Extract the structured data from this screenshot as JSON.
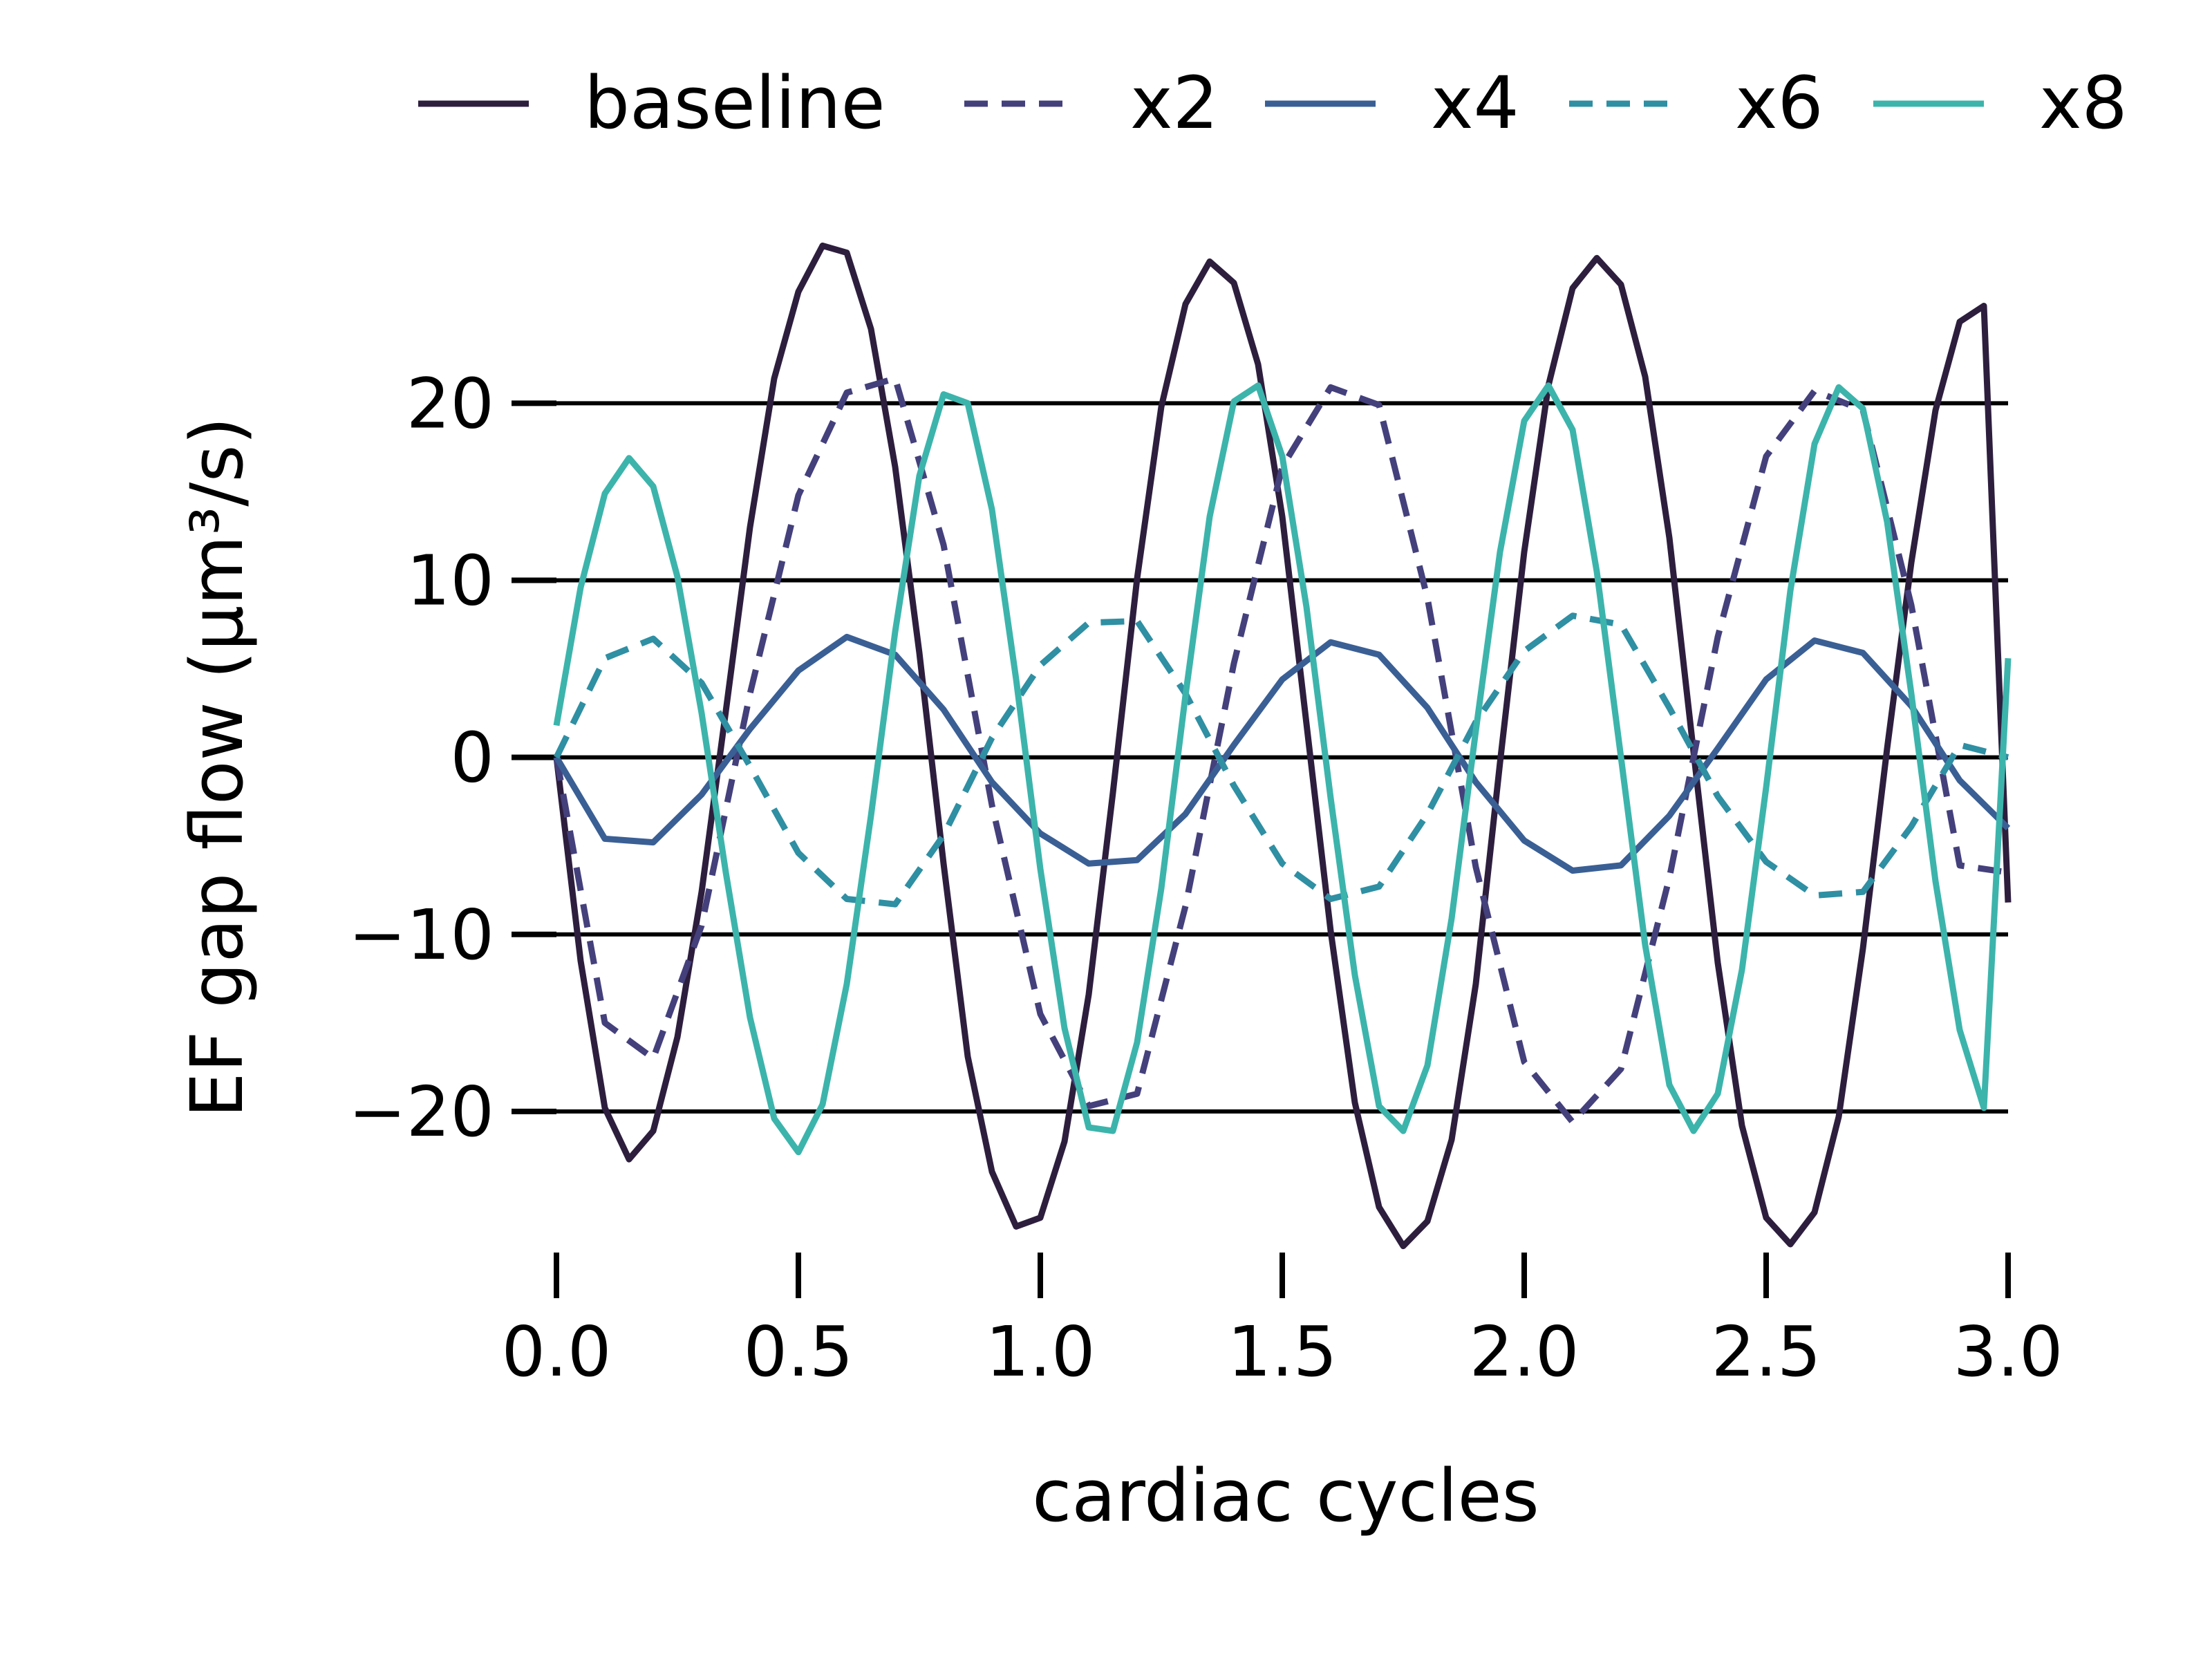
{
  "chart_data": {
    "type": "line",
    "title": "",
    "xlabel": "cardiac cycles",
    "ylabel": "EF gap flow (μm³/s)",
    "xlim": [
      0.0,
      3.0
    ],
    "ylim": [
      -27.5,
      29.5
    ],
    "xticks": [
      0.0,
      0.5,
      1.0,
      1.5,
      2.0,
      2.5,
      3.0
    ],
    "xtick_labels": [
      "0.0",
      "0.5",
      "1.0",
      "1.5",
      "2.0",
      "2.5",
      "3.0"
    ],
    "yticks": [
      -20,
      -10,
      0,
      10,
      20
    ],
    "ytick_labels": [
      "−20",
      "−10",
      "0",
      "10",
      "20"
    ],
    "grid": "horizontal",
    "legend_position": "top",
    "series": [
      {
        "name": "baseline",
        "color": "#2d1e3e",
        "dash": "solid",
        "x": [
          0.0,
          0.05,
          0.1,
          0.15,
          0.2,
          0.25,
          0.3,
          0.35,
          0.4,
          0.45,
          0.5,
          0.55,
          0.6,
          0.65,
          0.7,
          0.75,
          0.8,
          0.85,
          0.9,
          0.95,
          1.0,
          1.05,
          1.1,
          1.15,
          1.2,
          1.25,
          1.3,
          1.35,
          1.4,
          1.45,
          1.5,
          1.55,
          1.6,
          1.65,
          1.7,
          1.75,
          1.8,
          1.85,
          1.9,
          1.95,
          2.0,
          2.05,
          2.1,
          2.15,
          2.2,
          2.25,
          2.3,
          2.35,
          2.4,
          2.45,
          2.5,
          2.55,
          2.6,
          2.65,
          2.7,
          2.75,
          2.8,
          2.85,
          2.9,
          2.95,
          3.0
        ],
        "y": [
          0.0,
          -11.5,
          -19.8,
          -22.7,
          -21.1,
          -15.8,
          -7.6,
          2.6,
          13.0,
          21.4,
          26.3,
          28.9,
          28.5,
          24.2,
          16.4,
          5.9,
          -6.0,
          -16.9,
          -23.4,
          -26.5,
          -26.0,
          -21.7,
          -13.4,
          -2.0,
          10.1,
          19.8,
          25.6,
          28.0,
          26.8,
          22.2,
          13.6,
          1.9,
          -9.8,
          -19.5,
          -25.4,
          -27.6,
          -26.2,
          -21.6,
          -12.8,
          -0.3,
          11.6,
          21.0,
          26.5,
          28.2,
          26.7,
          21.5,
          12.4,
          0.3,
          -11.6,
          -20.8,
          -26.0,
          -27.5,
          -25.7,
          -20.3,
          -10.8,
          0.5,
          11.0,
          19.6,
          24.6,
          25.5,
          -8.2
        ]
      },
      {
        "name": "x2",
        "color": "#44407c",
        "dash": "dashed",
        "x": [
          0.0,
          0.1,
          0.2,
          0.3,
          0.4,
          0.5,
          0.6,
          0.7,
          0.8,
          0.9,
          1.0,
          1.1,
          1.2,
          1.3,
          1.4,
          1.5,
          1.6,
          1.7,
          1.8,
          1.9,
          2.0,
          2.1,
          2.2,
          2.3,
          2.4,
          2.5,
          2.6,
          2.7,
          2.8,
          2.9,
          3.0
        ],
        "y": [
          0.0,
          -15.0,
          -17.0,
          -9.5,
          3.6,
          14.8,
          20.6,
          21.4,
          12.0,
          -2.7,
          -14.5,
          -19.7,
          -19.0,
          -8.4,
          5.3,
          16.4,
          20.9,
          19.9,
          9.0,
          -6.2,
          -17.2,
          -20.6,
          -17.6,
          -6.8,
          6.8,
          17.0,
          20.7,
          19.6,
          8.6,
          -6.1,
          -6.5
        ]
      },
      {
        "name": "x4",
        "color": "#3a5f95",
        "dash": "solid",
        "x": [
          0.0,
          0.1,
          0.2,
          0.3,
          0.4,
          0.5,
          0.6,
          0.7,
          0.8,
          0.9,
          1.0,
          1.1,
          1.2,
          1.3,
          1.4,
          1.5,
          1.6,
          1.7,
          1.8,
          1.9,
          2.0,
          2.1,
          2.2,
          2.3,
          2.4,
          2.5,
          2.6,
          2.7,
          2.8,
          2.9,
          3.0
        ],
        "y": [
          0.0,
          -4.6,
          -4.8,
          -2.1,
          1.6,
          4.9,
          6.8,
          5.8,
          2.7,
          -1.4,
          -4.3,
          -6.0,
          -5.8,
          -3.2,
          0.7,
          4.4,
          6.5,
          5.8,
          2.8,
          -1.4,
          -4.7,
          -6.4,
          -6.1,
          -3.3,
          0.5,
          4.4,
          6.6,
          5.9,
          2.9,
          -1.3,
          -4.0
        ]
      },
      {
        "name": "x6",
        "color": "#2f8fa3",
        "dash": "dashed",
        "x": [
          0.0,
          0.1,
          0.2,
          0.3,
          0.4,
          0.5,
          0.6,
          0.7,
          0.8,
          0.9,
          1.0,
          1.1,
          1.2,
          1.3,
          1.4,
          1.5,
          1.6,
          1.7,
          1.8,
          1.9,
          2.0,
          2.1,
          2.2,
          2.3,
          2.4,
          2.5,
          2.6,
          2.7,
          2.8,
          2.9,
          3.0
        ],
        "y": [
          0.0,
          5.6,
          6.7,
          4.2,
          -0.5,
          -5.4,
          -8.0,
          -8.3,
          -4.4,
          1.1,
          5.2,
          7.6,
          7.7,
          3.6,
          -1.6,
          -6.0,
          -8.0,
          -7.3,
          -3.2,
          2.0,
          6.0,
          8.0,
          7.5,
          2.8,
          -2.2,
          -5.9,
          -7.8,
          -7.6,
          -3.9,
          0.7,
          0.0
        ]
      },
      {
        "name": "x8",
        "color": "#3cb4ac",
        "dash": "solid",
        "x": [
          0.0,
          0.05,
          0.1,
          0.15,
          0.2,
          0.25,
          0.3,
          0.35,
          0.4,
          0.45,
          0.5,
          0.55,
          0.6,
          0.65,
          0.7,
          0.75,
          0.8,
          0.85,
          0.9,
          0.95,
          1.0,
          1.05,
          1.1,
          1.15,
          1.2,
          1.25,
          1.3,
          1.35,
          1.4,
          1.45,
          1.5,
          1.55,
          1.6,
          1.65,
          1.7,
          1.75,
          1.8,
          1.85,
          1.9,
          1.95,
          2.0,
          2.05,
          2.1,
          2.15,
          2.2,
          2.25,
          2.3,
          2.35,
          2.4,
          2.45,
          2.5,
          2.55,
          2.6,
          2.65,
          2.7,
          2.75,
          2.8,
          2.85,
          2.9,
          2.95,
          3.0
        ],
        "y": [
          1.8,
          9.6,
          14.9,
          16.9,
          15.3,
          10.2,
          2.5,
          -6.5,
          -14.7,
          -20.4,
          -22.3,
          -19.6,
          -12.8,
          -3.3,
          7.1,
          15.9,
          20.5,
          20.0,
          14.0,
          4.4,
          -6.3,
          -15.3,
          -20.9,
          -21.1,
          -16.1,
          -7.4,
          3.5,
          13.6,
          20.1,
          21.0,
          17.0,
          8.5,
          -2.3,
          -12.3,
          -19.7,
          -21.1,
          -17.4,
          -9.1,
          1.5,
          11.6,
          19.0,
          21.0,
          18.5,
          10.5,
          0.0,
          -10.6,
          -18.5,
          -21.1,
          -19.0,
          -12.0,
          -1.7,
          9.4,
          17.7,
          20.9,
          19.7,
          13.3,
          3.6,
          -7.0,
          -15.4,
          -19.8,
          5.6
        ]
      }
    ]
  }
}
